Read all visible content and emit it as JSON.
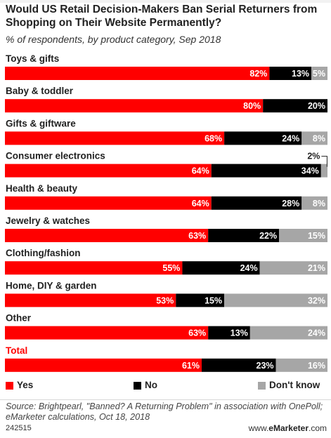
{
  "header": {
    "title": "Would US Retail Decision-Makers Ban Serial Returners from Shopping on Their Website Permanently?",
    "subtitle": "% of respondents, by product category, Sep 2018"
  },
  "colors": {
    "yes": "#ff0000",
    "no": "#000000",
    "dont_know": "#a6a6a6",
    "total_label": "#ff0000"
  },
  "chart_data": {
    "type": "bar",
    "orientation": "horizontal",
    "stacked": true,
    "percent_suffix": "%",
    "categories": [
      "Toys & gifts",
      "Baby & toddler",
      "Gifts & giftware",
      "Consumer electronics",
      "Health & beauty",
      "Jewelry & watches",
      "Clothing/fashion",
      "Home, DIY & garden",
      "Other",
      "Total"
    ],
    "series": [
      {
        "name": "Yes",
        "values": [
          82,
          80,
          68,
          64,
          64,
          63,
          55,
          53,
          63,
          61
        ]
      },
      {
        "name": "No",
        "values": [
          13,
          20,
          24,
          34,
          28,
          22,
          24,
          15,
          13,
          23
        ]
      },
      {
        "name": "Don't know",
        "values": [
          5,
          0,
          8,
          2,
          8,
          15,
          21,
          32,
          24,
          16
        ]
      }
    ],
    "xlim": [
      0,
      100
    ],
    "legend_position": "bottom"
  },
  "legend": {
    "yes": "Yes",
    "no": "No",
    "dont_know": "Don't know"
  },
  "footer": {
    "source": "Source: Brightpearl, \"Banned? A Returning Problem\" in association with OnePoll; eMarketer calculations, Oct 18, 2018",
    "chart_id": "242515",
    "brand_prefix": "www.",
    "brand_name": "eMarketer",
    "brand_suffix": ".com"
  }
}
